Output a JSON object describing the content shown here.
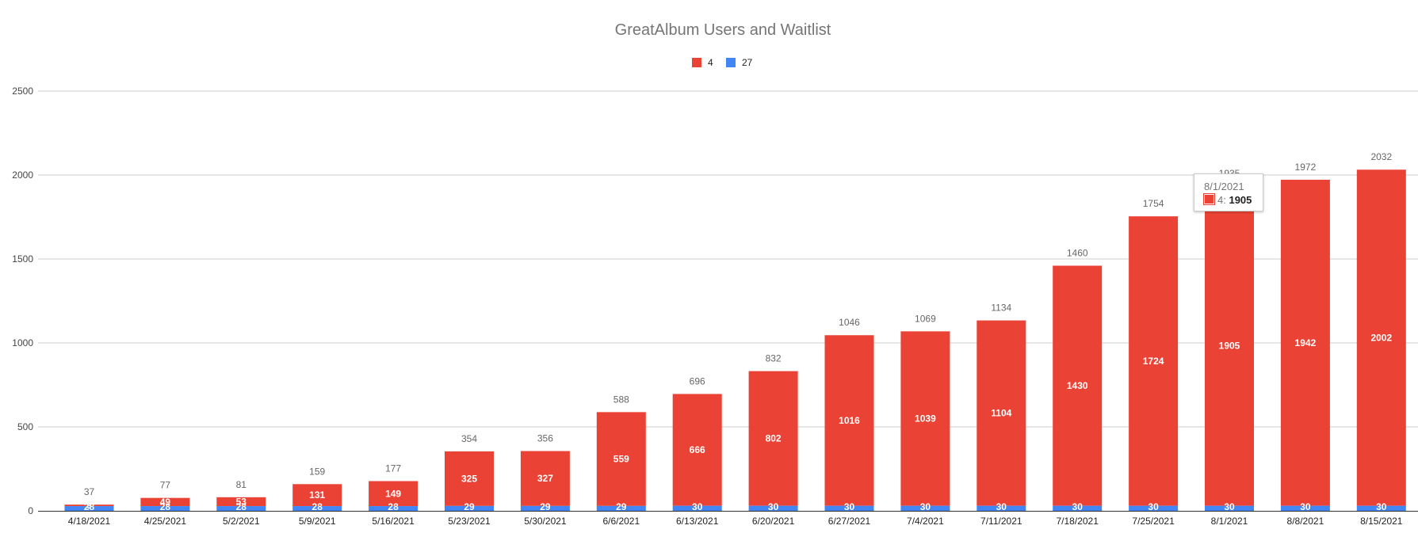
{
  "chart_data": {
    "type": "bar",
    "stacked": true,
    "title": "GreatAlbum Users and Waitlist",
    "xlabel": "",
    "ylabel": "",
    "categories": [
      "4/18/2021",
      "4/25/2021",
      "5/2/2021",
      "5/9/2021",
      "5/16/2021",
      "5/23/2021",
      "5/30/2021",
      "6/6/2021",
      "6/13/2021",
      "6/20/2021",
      "6/27/2021",
      "7/4/2021",
      "7/11/2021",
      "7/18/2021",
      "7/25/2021",
      "8/1/2021",
      "8/8/2021",
      "8/15/2021"
    ],
    "series": [
      {
        "name": "27",
        "color": "#4285f4",
        "values": [
          28,
          28,
          28,
          28,
          28,
          29,
          29,
          29,
          30,
          30,
          30,
          30,
          30,
          30,
          30,
          30,
          30,
          30
        ]
      },
      {
        "name": "4",
        "color": "#ea4335",
        "values": [
          9,
          49,
          53,
          131,
          149,
          325,
          327,
          559,
          666,
          802,
          1016,
          1039,
          1104,
          1430,
          1724,
          1905,
          1942,
          2002
        ]
      }
    ],
    "totals": [
      37,
      77,
      81,
      159,
      177,
      354,
      356,
      588,
      696,
      832,
      1046,
      1069,
      1134,
      1460,
      1754,
      1935,
      1972,
      2032
    ],
    "legend_order": [
      "4",
      "27"
    ],
    "ylim": [
      0,
      2500
    ],
    "yticks": [
      0,
      500,
      1000,
      1500,
      2000,
      2500
    ],
    "grid": true,
    "legend_position": "top"
  },
  "tooltip": {
    "date": "8/1/2021",
    "series": "4",
    "separator": ": ",
    "value": "1905",
    "color": "#ea4335"
  }
}
